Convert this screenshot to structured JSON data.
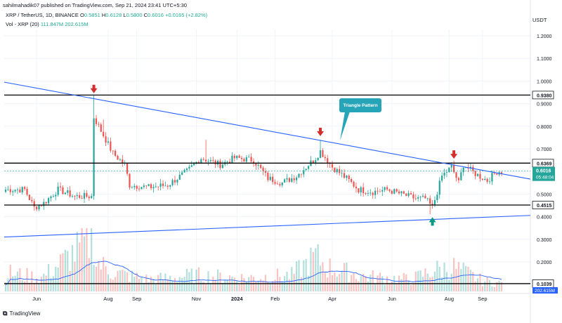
{
  "header": {
    "published_by": "sahilmahadik07 published on TradingView.com, Sep 21, 2024 23:41 UTC+5:30",
    "symbol": "XRP / TetherUS, 1D, BINANCE",
    "ohlc": [
      {
        "label": "O",
        "value": "0.5851"
      },
      {
        "label": "H",
        "value": "0.6128"
      },
      {
        "label": "L",
        "value": "0.5800"
      },
      {
        "label": "C",
        "value": "0.6016"
      }
    ],
    "change": "+0.0165 (+2.82%)",
    "volume_label": "Vol - XRP (20)",
    "volume_values": [
      "111.847M",
      "202.615M"
    ]
  },
  "currency_label": "USDT",
  "annotation": "Triangle Pattern",
  "footer_brand": "TradingView",
  "colors": {
    "up": "#26a69a",
    "down": "#ef5350",
    "trendline": "#2962ff",
    "volume_ma": "#2962ff",
    "horizontal_level": "#000000",
    "callout": "#26a5b8",
    "arrow_down": "#d32f2f",
    "arrow_up": "#089981"
  },
  "chart_data": {
    "type": "candlestick",
    "price_axis_ticks": [
      "1.2000",
      "1.1000",
      "1.0000",
      "0.9000",
      "0.8000",
      "0.7000",
      "0.6000",
      "0.5000",
      "0.4000",
      "0.3000",
      "0.2000"
    ],
    "time_axis_ticks": [
      "Jun",
      "Aug",
      "Sep",
      "Nov",
      "2024",
      "Feb",
      "Apr",
      "Jun",
      "Aug",
      "Sep"
    ],
    "ylim": [
      0.09,
      1.27
    ],
    "price_scale_labels": [
      {
        "text": "0.9380",
        "price": 0.938,
        "style": "level"
      },
      {
        "text": "0.6369",
        "price": 0.6369,
        "style": "level"
      },
      {
        "text": "0.6016",
        "price": 0.6016,
        "style": "current",
        "sub": "05:48:04"
      },
      {
        "text": "0.4515",
        "price": 0.4515,
        "style": "level"
      },
      {
        "text": "0.1039",
        "price": 0.1039,
        "style": "level"
      },
      {
        "text": "202.615M",
        "price": 0.09,
        "style": "volume"
      }
    ],
    "horizontal_levels": [
      0.938,
      0.6369,
      0.4515,
      0.1039
    ],
    "trendlines": [
      {
        "name": "Upper descending trendline",
        "from": {
          "index": 0,
          "price": 0.995
        },
        "to": {
          "index": 212,
          "price": 0.583
        }
      },
      {
        "name": "Lower ascending trendline",
        "from": {
          "index": 0,
          "price": 0.31
        },
        "to": {
          "index": 212,
          "price": 0.402
        }
      }
    ],
    "markers": [
      {
        "type": "down-arrow",
        "index": 37,
        "price": 0.94
      },
      {
        "type": "down-arrow",
        "index": 132,
        "price": 0.75
      },
      {
        "type": "down-arrow",
        "index": 188,
        "price": 0.65
      },
      {
        "type": "up-arrow",
        "index": 179,
        "price": 0.41
      }
    ],
    "candle_keypoints": [
      [
        0,
        0.52
      ],
      [
        8,
        0.52
      ],
      [
        12,
        0.44
      ],
      [
        16,
        0.46
      ],
      [
        22,
        0.52
      ],
      [
        29,
        0.49
      ],
      [
        36,
        0.49
      ],
      [
        37,
        0.84
      ],
      [
        40,
        0.78
      ],
      [
        45,
        0.68
      ],
      [
        50,
        0.63
      ],
      [
        52,
        0.54
      ],
      [
        60,
        0.53
      ],
      [
        68,
        0.54
      ],
      [
        76,
        0.6
      ],
      [
        82,
        0.66
      ],
      [
        90,
        0.63
      ],
      [
        96,
        0.66
      ],
      [
        104,
        0.65
      ],
      [
        110,
        0.57
      ],
      [
        116,
        0.55
      ],
      [
        122,
        0.58
      ],
      [
        126,
        0.62
      ],
      [
        130,
        0.66
      ],
      [
        132,
        0.69
      ],
      [
        137,
        0.62
      ],
      [
        144,
        0.56
      ],
      [
        148,
        0.52
      ],
      [
        154,
        0.51
      ],
      [
        160,
        0.52
      ],
      [
        166,
        0.5
      ],
      [
        172,
        0.48
      ],
      [
        176,
        0.48
      ],
      [
        179,
        0.44
      ],
      [
        183,
        0.58
      ],
      [
        187,
        0.62
      ],
      [
        190,
        0.55
      ],
      [
        192,
        0.63
      ],
      [
        197,
        0.59
      ],
      [
        202,
        0.56
      ],
      [
        206,
        0.6
      ],
      [
        208,
        0.6
      ]
    ],
    "spikes": [
      {
        "index": 37,
        "high": 0.94
      },
      {
        "index": 41,
        "high": 0.83
      },
      {
        "index": 84,
        "high": 0.74
      },
      {
        "index": 132,
        "high": 0.74
      },
      {
        "index": 178,
        "low": 0.41
      }
    ],
    "volume_keypoints": [
      [
        0,
        0.35
      ],
      [
        15,
        0.25
      ],
      [
        37,
        1.0
      ],
      [
        38,
        0.55
      ],
      [
        45,
        0.35
      ],
      [
        60,
        0.22
      ],
      [
        80,
        0.3
      ],
      [
        100,
        0.25
      ],
      [
        120,
        0.3
      ],
      [
        130,
        0.65
      ],
      [
        135,
        0.45
      ],
      [
        150,
        0.28
      ],
      [
        170,
        0.22
      ],
      [
        180,
        0.4
      ],
      [
        188,
        0.45
      ],
      [
        200,
        0.2
      ],
      [
        208,
        0.15
      ]
    ]
  }
}
